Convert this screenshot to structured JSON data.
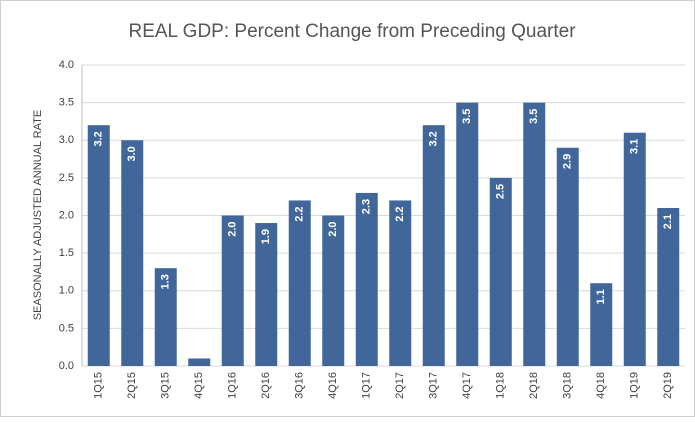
{
  "chart_data": {
    "type": "bar",
    "title": "REAL GDP: Percent Change from Preceding Quarter",
    "y_label": "SEASONALLY ADJUSTED ANNUAL RATE",
    "categories": [
      "1Q15",
      "2Q15",
      "3Q15",
      "4Q15",
      "1Q16",
      "2Q16",
      "3Q16",
      "4Q16",
      "1Q17",
      "2Q17",
      "3Q17",
      "4Q17",
      "1Q18",
      "2Q18",
      "3Q18",
      "4Q18",
      "1Q19",
      "2Q19"
    ],
    "values": [
      3.2,
      3.0,
      1.3,
      0.1,
      2.0,
      1.9,
      2.2,
      2.0,
      2.3,
      2.2,
      3.2,
      3.5,
      2.5,
      3.5,
      2.9,
      1.1,
      3.1,
      2.1
    ],
    "value_labels": [
      "3.2",
      "3.0",
      "1.3",
      null,
      "2.0",
      "1.9",
      "2.2",
      "2.0",
      "2.3",
      "2.2",
      "3.2",
      "3.5",
      "2.5",
      "3.5",
      "2.9",
      "1.1",
      "3.1",
      "2.1"
    ],
    "color": "#41679a",
    "ylim": [
      0,
      4
    ],
    "yticks": [
      {
        "value": 0,
        "label": "0.0"
      },
      0.5,
      {
        "value": 1,
        "label": "1.0"
      },
      1.5,
      {
        "value": 2,
        "label": "2.0"
      },
      2.5,
      {
        "value": 3,
        "label": "3.0"
      },
      3.5,
      {
        "value": 4,
        "label": "4.0"
      }
    ],
    "grid": true
  }
}
